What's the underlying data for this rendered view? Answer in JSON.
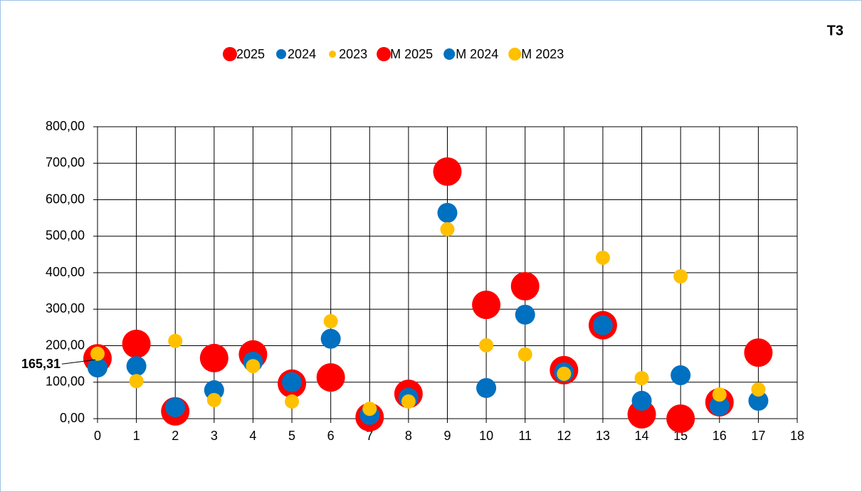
{
  "chart_data": {
    "type": "scatter",
    "title": "T3",
    "x": [
      0,
      1,
      2,
      3,
      4,
      5,
      6,
      7,
      8,
      9,
      10,
      11,
      12,
      13,
      14,
      15,
      16,
      17
    ],
    "series": [
      {
        "name": "2025",
        "color": "#ff0000",
        "marker_size": 20,
        "values": [
          165.31,
          205,
          20,
          166,
          176,
          96,
          113,
          4,
          68,
          677,
          312,
          363,
          133,
          256,
          12,
          0,
          45,
          181
        ],
        "value_labels": [
          "165,31",
          null,
          null,
          null,
          null,
          null,
          null,
          null,
          null,
          null,
          null,
          null,
          null,
          null,
          null,
          null,
          null,
          null
        ]
      },
      {
        "name": "2024",
        "color": "#0070c0",
        "marker_size": 14,
        "values": [
          140,
          144,
          31,
          78,
          156,
          100,
          219,
          10,
          57,
          564,
          84,
          285,
          127,
          256,
          49,
          119,
          35,
          49
        ]
      },
      {
        "name": "2023",
        "color": "#ffc000",
        "marker_size": 10,
        "values": [
          178,
          103,
          213,
          51,
          144,
          47,
          267,
          27,
          47,
          519,
          201,
          176,
          123,
          441,
          111,
          390,
          66,
          80
        ]
      },
      {
        "name": "M 2025",
        "color": "#ff0000",
        "marker_size": 20
      },
      {
        "name": "M 2024",
        "color": "#0070c0",
        "marker_size": 16
      },
      {
        "name": "M 2023",
        "color": "#ffc000",
        "marker_size": 18
      }
    ],
    "xlim": [
      0,
      18
    ],
    "xticks": [
      0,
      1,
      2,
      3,
      4,
      5,
      6,
      7,
      8,
      9,
      10,
      11,
      12,
      13,
      14,
      15,
      16,
      17,
      18
    ],
    "ylim": [
      0,
      800
    ],
    "yticks": [
      {
        "value": 0,
        "label": "0,00"
      },
      {
        "value": 100,
        "label": "100,00"
      },
      {
        "value": 200,
        "label": "200,00"
      },
      {
        "value": 300,
        "label": "300,00"
      },
      {
        "value": 400,
        "label": "400,00"
      },
      {
        "value": 500,
        "label": "500,00"
      },
      {
        "value": 600,
        "label": "600,00"
      },
      {
        "value": 700,
        "label": "700,00"
      },
      {
        "value": 800,
        "label": "800,00"
      }
    ],
    "grid": true,
    "legend": "top"
  }
}
